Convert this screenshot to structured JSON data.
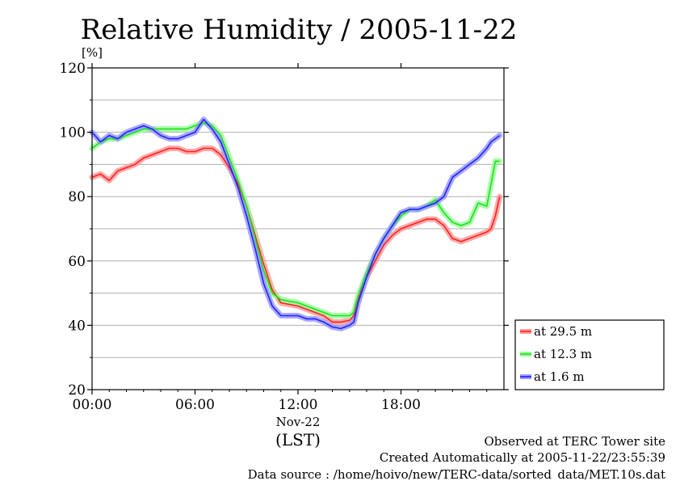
{
  "chart_data": {
    "type": "line",
    "title": "Relative Humidity / 2005-11-22",
    "ylabel": "[%]",
    "date_label": "Nov-22",
    "timezone_label": "(LST)",
    "ylim": [
      20,
      120
    ],
    "xlim": [
      0,
      24
    ],
    "y_ticks": [
      {
        "value": 20,
        "label": "20"
      },
      {
        "value": 40,
        "label": "40"
      },
      {
        "value": 60,
        "label": "60"
      },
      {
        "value": 80,
        "label": "80"
      },
      {
        "value": 100,
        "label": "100"
      },
      {
        "value": 120,
        "label": "120"
      }
    ],
    "y_grid_minor": [
      30,
      50,
      70,
      90,
      110
    ],
    "x_ticks": [
      {
        "value": 0,
        "label": "00:00"
      },
      {
        "value": 6,
        "label": "06:00"
      },
      {
        "value": 12,
        "label": "12:00"
      },
      {
        "value": 18,
        "label": "18:00"
      }
    ],
    "grid": true,
    "legend_position": "right-bottom",
    "x_unit": "hour of day (LST)",
    "series": [
      {
        "name": "at 29.5 m",
        "color": "#ff2222",
        "band_color": "#ff9a9a",
        "x": [
          0,
          0.5,
          1,
          1.5,
          2,
          2.5,
          3,
          3.5,
          4,
          4.5,
          5,
          5.5,
          6,
          6.5,
          7,
          7.5,
          8,
          8.5,
          9,
          9.5,
          10,
          10.5,
          11,
          11.5,
          12,
          12.5,
          13,
          13.5,
          14,
          14.5,
          15,
          15.25,
          15.5,
          16,
          16.5,
          17,
          17.5,
          18,
          18.5,
          19,
          19.5,
          20,
          20.5,
          21,
          21.5,
          22,
          22.5,
          23,
          23.25,
          23.5,
          23.75
        ],
        "y": [
          86,
          87,
          85,
          88,
          89,
          90,
          92,
          93,
          94,
          95,
          95,
          94,
          94,
          95,
          95,
          93,
          89,
          84,
          77,
          68,
          59,
          51,
          47,
          46.5,
          46,
          45,
          44,
          43,
          41,
          41,
          41.5,
          43,
          48,
          55,
          60,
          65,
          68,
          70,
          71,
          72,
          73,
          73,
          71,
          67,
          66,
          67,
          68,
          69,
          70,
          74,
          80
        ]
      },
      {
        "name": "at 12.3 m",
        "color": "#22dd22",
        "band_color": "#99ff99",
        "x": [
          0,
          0.5,
          1,
          1.5,
          2,
          2.5,
          3,
          3.5,
          4,
          4.5,
          5,
          5.5,
          6,
          6.5,
          7,
          7.5,
          8,
          8.5,
          9,
          9.5,
          10,
          10.5,
          11,
          11.5,
          12,
          12.5,
          13,
          13.5,
          14,
          14.5,
          15,
          15.25,
          15.5,
          16,
          16.5,
          17,
          17.5,
          18,
          18.5,
          19,
          19.5,
          20,
          20.5,
          21,
          21.5,
          22,
          22.5,
          23,
          23.25,
          23.5,
          23.75
        ],
        "y": [
          95,
          97,
          98,
          98,
          99,
          100,
          101,
          101,
          101,
          101,
          101,
          101,
          102,
          103,
          102,
          99,
          92,
          85,
          77,
          67,
          57,
          50,
          48,
          47.5,
          47,
          46,
          45,
          44,
          43,
          43,
          43,
          44,
          49,
          56,
          62,
          67,
          71,
          74,
          76,
          76,
          77,
          79,
          75,
          72,
          71,
          72,
          78,
          77,
          84,
          91,
          91
        ]
      },
      {
        "name": "at 1.6 m",
        "color": "#2222ff",
        "band_color": "#9a9aff",
        "x": [
          0,
          0.5,
          1,
          1.5,
          2,
          2.5,
          3,
          3.5,
          4,
          4.5,
          5,
          5.5,
          6,
          6.5,
          7,
          7.5,
          8,
          8.5,
          9,
          9.5,
          10,
          10.5,
          11,
          11.5,
          12,
          12.5,
          13,
          13.5,
          14,
          14.5,
          15,
          15.25,
          15.5,
          16,
          16.5,
          17,
          17.5,
          18,
          18.5,
          19,
          19.5,
          20,
          20.5,
          21,
          21.5,
          22,
          22.5,
          23,
          23.25,
          23.5,
          23.75
        ],
        "y": [
          100,
          97,
          99,
          98,
          100,
          101,
          102,
          101,
          99,
          98,
          98,
          99,
          100,
          104,
          101,
          97,
          90,
          83,
          74,
          64,
          53,
          46,
          43,
          43,
          43,
          42,
          42,
          41,
          39.5,
          39,
          40,
          41,
          47,
          55,
          62,
          67,
          71,
          75,
          76,
          76,
          77,
          78,
          80,
          86,
          88,
          90,
          92,
          95,
          97,
          98,
          99
        ]
      }
    ]
  },
  "footer": {
    "line1": "Observed at TERC Tower site",
    "line2": "Created Automatically at 2005-11-22/23:55:39",
    "line3": "Data source : /home/hoivo/new/TERC-data/sorted_data/MET.10s.dat"
  }
}
